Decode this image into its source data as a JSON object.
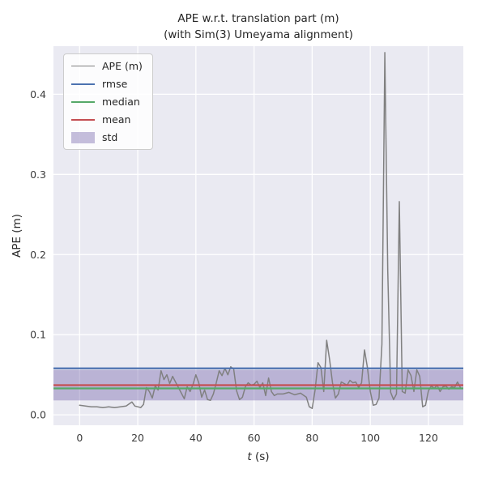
{
  "figure": {
    "title": "APE w.r.t. translation part (m)",
    "subtitle": "(with Sim(3) Umeyama alignment)",
    "ylabel": "APE (m)",
    "xlabel_var": "t",
    "xlabel_unit": "(s)"
  },
  "chart_data": {
    "type": "line",
    "title": "APE w.r.t. translation part (m)",
    "subtitle": "(with Sim(3) Umeyama alignment)",
    "xlabel": "t (s)",
    "ylabel": "APE (m)",
    "xlim": [
      -9,
      132
    ],
    "ylim": [
      -0.013,
      0.46
    ],
    "xticks": [
      0,
      20,
      40,
      60,
      80,
      100,
      120
    ],
    "yticks": [
      0.0,
      0.1,
      0.2,
      0.3,
      0.4
    ],
    "grid": true,
    "legend_position": "upper left",
    "plot_bg": "#eaeaf2",
    "grid_color": "#ffffff",
    "stats": {
      "rmse": 0.058,
      "median": 0.033,
      "mean": 0.037,
      "std": 0.019
    },
    "colors": {
      "ape": "#808080",
      "rmse": "#4c72b0",
      "median": "#55a868",
      "mean": "#c44e52",
      "std_band": "#8172b2",
      "std_band_alpha": 0.45
    },
    "legend": [
      {
        "label": "APE (m)",
        "type": "line",
        "color": "#808080",
        "width": 1.5
      },
      {
        "label": "rmse",
        "type": "line",
        "color": "#4c72b0",
        "width": 2.5
      },
      {
        "label": "median",
        "type": "line",
        "color": "#55a868",
        "width": 2.5
      },
      {
        "label": "mean",
        "type": "line",
        "color": "#c44e52",
        "width": 2.5
      },
      {
        "label": "std",
        "type": "patch",
        "color": "#8172b2",
        "alpha": 0.45
      }
    ],
    "series": [
      {
        "name": "APE (m)",
        "color": "#808080",
        "points": [
          [
            0,
            0.012
          ],
          [
            2,
            0.011
          ],
          [
            4,
            0.01
          ],
          [
            6,
            0.01
          ],
          [
            8,
            0.009
          ],
          [
            10,
            0.01
          ],
          [
            12,
            0.009
          ],
          [
            14,
            0.01
          ],
          [
            16,
            0.011
          ],
          [
            18,
            0.016
          ],
          [
            19,
            0.011
          ],
          [
            20,
            0.01
          ],
          [
            21,
            0.009
          ],
          [
            22,
            0.013
          ],
          [
            23,
            0.034
          ],
          [
            24,
            0.029
          ],
          [
            25,
            0.021
          ],
          [
            26,
            0.036
          ],
          [
            27,
            0.031
          ],
          [
            28,
            0.055
          ],
          [
            29,
            0.044
          ],
          [
            30,
            0.05
          ],
          [
            31,
            0.039
          ],
          [
            32,
            0.048
          ],
          [
            33,
            0.041
          ],
          [
            34,
            0.034
          ],
          [
            35,
            0.027
          ],
          [
            36,
            0.02
          ],
          [
            37,
            0.035
          ],
          [
            38,
            0.029
          ],
          [
            39,
            0.038
          ],
          [
            40,
            0.05
          ],
          [
            41,
            0.04
          ],
          [
            42,
            0.022
          ],
          [
            43,
            0.031
          ],
          [
            44,
            0.019
          ],
          [
            45,
            0.018
          ],
          [
            46,
            0.026
          ],
          [
            47,
            0.04
          ],
          [
            48,
            0.055
          ],
          [
            49,
            0.049
          ],
          [
            50,
            0.058
          ],
          [
            51,
            0.05
          ],
          [
            52,
            0.06
          ],
          [
            53,
            0.057
          ],
          [
            54,
            0.03
          ],
          [
            55,
            0.019
          ],
          [
            56,
            0.022
          ],
          [
            57,
            0.035
          ],
          [
            58,
            0.04
          ],
          [
            59,
            0.037
          ],
          [
            60,
            0.038
          ],
          [
            61,
            0.042
          ],
          [
            62,
            0.034
          ],
          [
            63,
            0.04
          ],
          [
            64,
            0.024
          ],
          [
            65,
            0.046
          ],
          [
            66,
            0.029
          ],
          [
            67,
            0.024
          ],
          [
            68,
            0.026
          ],
          [
            70,
            0.026
          ],
          [
            72,
            0.028
          ],
          [
            74,
            0.025
          ],
          [
            76,
            0.027
          ],
          [
            78,
            0.022
          ],
          [
            79,
            0.01
          ],
          [
            80,
            0.008
          ],
          [
            81,
            0.031
          ],
          [
            82,
            0.065
          ],
          [
            83,
            0.059
          ],
          [
            84,
            0.029
          ],
          [
            85,
            0.093
          ],
          [
            86,
            0.069
          ],
          [
            87,
            0.04
          ],
          [
            88,
            0.021
          ],
          [
            89,
            0.026
          ],
          [
            90,
            0.041
          ],
          [
            91,
            0.039
          ],
          [
            92,
            0.037
          ],
          [
            93,
            0.043
          ],
          [
            94,
            0.04
          ],
          [
            95,
            0.041
          ],
          [
            96,
            0.034
          ],
          [
            97,
            0.04
          ],
          [
            98,
            0.081
          ],
          [
            99,
            0.059
          ],
          [
            100,
            0.029
          ],
          [
            101,
            0.012
          ],
          [
            102,
            0.013
          ],
          [
            103,
            0.021
          ],
          [
            104,
            0.088
          ],
          [
            105,
            0.452
          ],
          [
            106,
            0.18
          ],
          [
            107,
            0.028
          ],
          [
            108,
            0.019
          ],
          [
            109,
            0.026
          ],
          [
            110,
            0.266
          ],
          [
            111,
            0.029
          ],
          [
            112,
            0.027
          ],
          [
            113,
            0.056
          ],
          [
            114,
            0.049
          ],
          [
            115,
            0.029
          ],
          [
            116,
            0.056
          ],
          [
            117,
            0.048
          ],
          [
            118,
            0.01
          ],
          [
            119,
            0.012
          ],
          [
            120,
            0.03
          ],
          [
            121,
            0.036
          ],
          [
            122,
            0.033
          ],
          [
            123,
            0.037
          ],
          [
            124,
            0.029
          ],
          [
            125,
            0.035
          ],
          [
            126,
            0.036
          ],
          [
            127,
            0.032
          ],
          [
            128,
            0.035
          ],
          [
            129,
            0.034
          ],
          [
            130,
            0.041
          ],
          [
            131,
            0.034
          ]
        ]
      }
    ]
  }
}
